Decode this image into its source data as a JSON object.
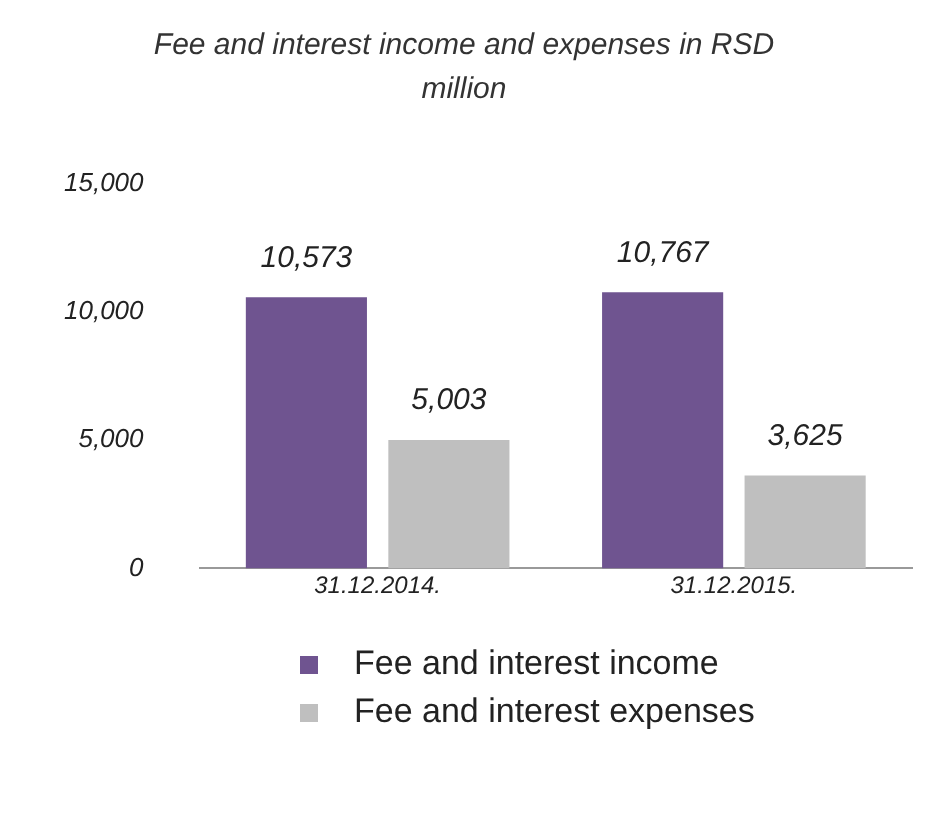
{
  "chart_data": {
    "type": "bar",
    "title": "Fee and interest income and expenses in RSD million",
    "categories": [
      "31.12.2014.",
      "31.12.2015."
    ],
    "series": [
      {
        "name": "Fee and interest income",
        "color": "#6f5490",
        "values": [
          10573,
          10767
        ],
        "value_labels": [
          "10,573",
          "10,767"
        ]
      },
      {
        "name": "Fee and interest expenses",
        "color": "#bfbfbf",
        "values": [
          5003,
          3625
        ],
        "value_labels": [
          "5,003",
          "3,625"
        ]
      }
    ],
    "ylim": [
      0,
      15000
    ],
    "yticks": [
      0,
      {
        "value": 5000,
        "label": "5,000"
      },
      {
        "value": 10000,
        "label": "10,000"
      },
      {
        "value": 15000,
        "label": "15,000"
      }
    ],
    "grid": false,
    "legend": "bottom"
  }
}
